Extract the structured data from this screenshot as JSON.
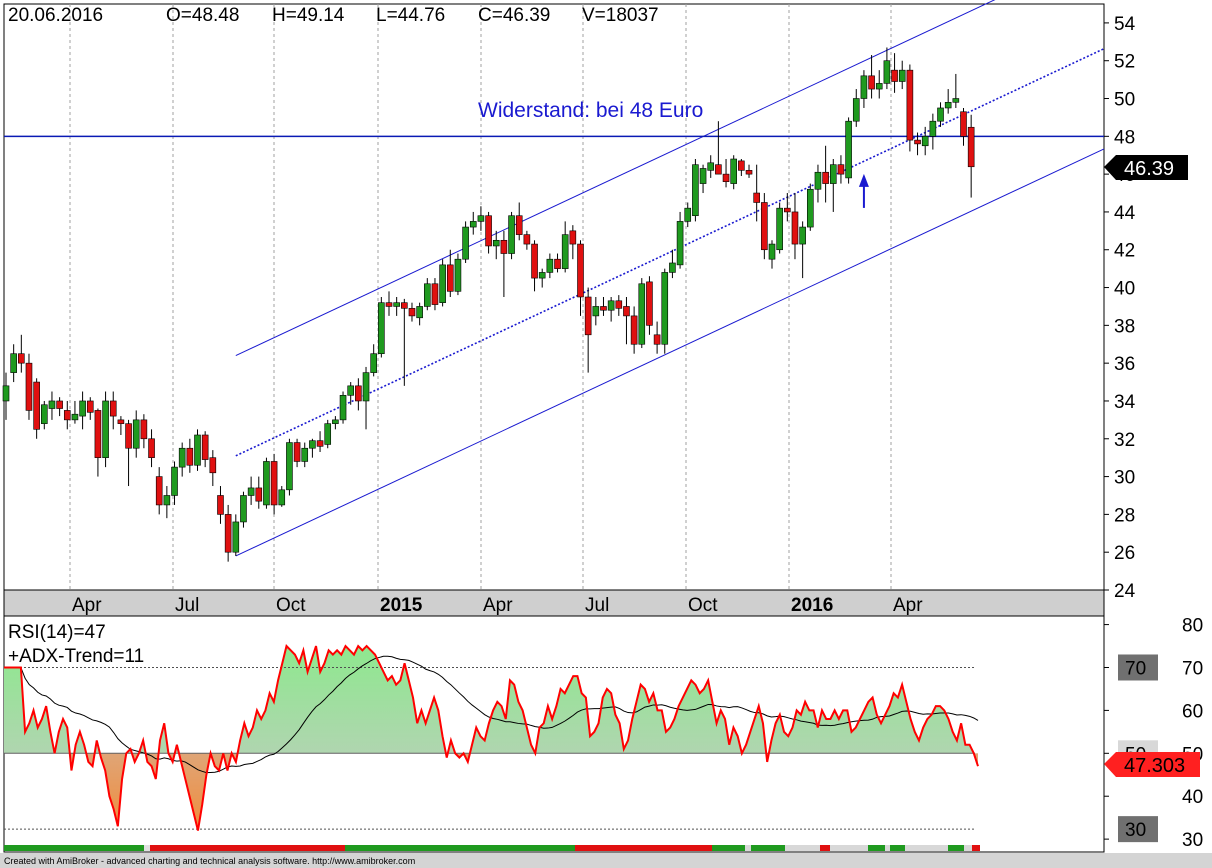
{
  "header": {
    "date": "20.06.2016",
    "open": "O=48.48",
    "high": "H=49.14",
    "low": "L=44.76",
    "close": "C=46.39",
    "volume": "V=18037"
  },
  "footer": {
    "credit": "Created with AmiBroker - advanced charting and technical analysis software. http://www.amibroker.com"
  },
  "colors": {
    "up": "#1f9a1f",
    "down": "#e01010",
    "channel": "#1a1ad0",
    "resistance": "#0a1ab4",
    "rsi_line": "#ff0000",
    "rsi_avg": "#000000",
    "rsi_fill_up": "#9fe09f",
    "rsi_fill_down": "#f0a060",
    "price_tag": "#000000",
    "rsi_tag": "#ff2020",
    "level_tag": "#606060"
  },
  "chart_data": [
    {
      "type": "candlestick",
      "panel": "price",
      "ylim": [
        24,
        55
      ],
      "y_ticks": [
        24,
        26,
        28,
        30,
        32,
        34,
        36,
        38,
        40,
        42,
        44,
        46,
        48,
        50,
        52,
        54
      ],
      "x_ticks": [
        {
          "label": "Apr",
          "date": "2014-04",
          "bold": false
        },
        {
          "label": "Jul",
          "date": "2014-07",
          "bold": false
        },
        {
          "label": "Oct",
          "date": "2014-10",
          "bold": false
        },
        {
          "label": "2015",
          "date": "2015-01",
          "bold": true
        },
        {
          "label": "Apr",
          "date": "2015-04",
          "bold": false
        },
        {
          "label": "Jul",
          "date": "2015-07",
          "bold": false
        },
        {
          "label": "Oct",
          "date": "2015-10",
          "bold": false
        },
        {
          "label": "2016",
          "date": "2016-01",
          "bold": true
        },
        {
          "label": "Apr",
          "date": "2016-04",
          "bold": false
        }
      ],
      "candles": [
        {
          "o": 34.0,
          "h": 35.5,
          "l": 33.0,
          "c": 34.8
        },
        {
          "o": 35.5,
          "h": 37.0,
          "l": 35.0,
          "c": 36.5
        },
        {
          "o": 36.5,
          "h": 37.5,
          "l": 35.5,
          "c": 36.0
        },
        {
          "o": 36.0,
          "h": 36.5,
          "l": 33.0,
          "c": 33.5
        },
        {
          "o": 35.0,
          "h": 35.2,
          "l": 32.0,
          "c": 32.5
        },
        {
          "o": 32.8,
          "h": 34.0,
          "l": 32.5,
          "c": 33.8
        },
        {
          "o": 33.6,
          "h": 34.5,
          "l": 33.0,
          "c": 34.0
        },
        {
          "o": 34.0,
          "h": 34.2,
          "l": 33.2,
          "c": 33.6
        },
        {
          "o": 33.5,
          "h": 34.0,
          "l": 32.5,
          "c": 33.0
        },
        {
          "o": 33.0,
          "h": 34.0,
          "l": 32.8,
          "c": 33.3
        },
        {
          "o": 33.2,
          "h": 34.5,
          "l": 32.5,
          "c": 34.0
        },
        {
          "o": 34.0,
          "h": 34.2,
          "l": 33.0,
          "c": 33.4
        },
        {
          "o": 33.5,
          "h": 33.6,
          "l": 30.0,
          "c": 31.0
        },
        {
          "o": 31.0,
          "h": 34.5,
          "l": 30.5,
          "c": 34.0
        },
        {
          "o": 34.0,
          "h": 34.5,
          "l": 32.5,
          "c": 33.2
        },
        {
          "o": 33.0,
          "h": 33.2,
          "l": 32.2,
          "c": 32.8
        },
        {
          "o": 32.8,
          "h": 33.0,
          "l": 29.5,
          "c": 31.5
        },
        {
          "o": 31.5,
          "h": 33.5,
          "l": 31.0,
          "c": 33.0
        },
        {
          "o": 33.0,
          "h": 33.3,
          "l": 31.5,
          "c": 32.0
        },
        {
          "o": 32.0,
          "h": 32.5,
          "l": 30.5,
          "c": 31.0
        },
        {
          "o": 30.0,
          "h": 30.5,
          "l": 28.0,
          "c": 28.5
        },
        {
          "o": 28.5,
          "h": 29.5,
          "l": 27.8,
          "c": 29.0
        },
        {
          "o": 29.0,
          "h": 30.8,
          "l": 28.5,
          "c": 30.5
        },
        {
          "o": 30.5,
          "h": 31.8,
          "l": 30.0,
          "c": 31.5
        },
        {
          "o": 31.5,
          "h": 32.0,
          "l": 30.2,
          "c": 30.6
        },
        {
          "o": 30.6,
          "h": 32.5,
          "l": 30.3,
          "c": 32.2
        },
        {
          "o": 32.2,
          "h": 32.4,
          "l": 30.5,
          "c": 30.9
        },
        {
          "o": 31.0,
          "h": 31.4,
          "l": 29.5,
          "c": 30.2
        },
        {
          "o": 29.0,
          "h": 29.5,
          "l": 27.5,
          "c": 28.0
        },
        {
          "o": 28.0,
          "h": 28.5,
          "l": 25.5,
          "c": 26.0
        },
        {
          "o": 26.0,
          "h": 28.0,
          "l": 25.8,
          "c": 27.6
        },
        {
          "o": 27.6,
          "h": 29.2,
          "l": 27.3,
          "c": 29.0
        },
        {
          "o": 29.0,
          "h": 30.0,
          "l": 28.5,
          "c": 29.4
        },
        {
          "o": 29.4,
          "h": 30.0,
          "l": 28.3,
          "c": 28.7
        },
        {
          "o": 28.5,
          "h": 31.0,
          "l": 28.3,
          "c": 30.8
        },
        {
          "o": 30.8,
          "h": 31.2,
          "l": 28.0,
          "c": 28.5
        },
        {
          "o": 28.5,
          "h": 29.5,
          "l": 28.4,
          "c": 29.3
        },
        {
          "o": 29.3,
          "h": 32.0,
          "l": 29.0,
          "c": 31.8
        },
        {
          "o": 31.8,
          "h": 32.0,
          "l": 30.5,
          "c": 30.8
        },
        {
          "o": 30.8,
          "h": 31.8,
          "l": 30.5,
          "c": 31.5
        },
        {
          "o": 31.5,
          "h": 32.0,
          "l": 31.0,
          "c": 31.9
        },
        {
          "o": 31.9,
          "h": 32.4,
          "l": 31.3,
          "c": 31.6
        },
        {
          "o": 31.7,
          "h": 33.0,
          "l": 31.5,
          "c": 32.8
        },
        {
          "o": 32.8,
          "h": 33.2,
          "l": 32.5,
          "c": 33.0
        },
        {
          "o": 33.0,
          "h": 34.5,
          "l": 32.8,
          "c": 34.3
        },
        {
          "o": 34.3,
          "h": 35.0,
          "l": 33.8,
          "c": 34.8
        },
        {
          "o": 34.8,
          "h": 35.2,
          "l": 33.5,
          "c": 34.0
        },
        {
          "o": 34.0,
          "h": 35.8,
          "l": 32.5,
          "c": 35.5
        },
        {
          "o": 35.5,
          "h": 37.0,
          "l": 35.3,
          "c": 36.5
        },
        {
          "o": 36.5,
          "h": 39.5,
          "l": 36.3,
          "c": 39.2
        },
        {
          "o": 39.2,
          "h": 39.8,
          "l": 38.5,
          "c": 39.0
        },
        {
          "o": 39.0,
          "h": 39.5,
          "l": 38.5,
          "c": 39.2
        },
        {
          "o": 39.2,
          "h": 39.4,
          "l": 34.8,
          "c": 38.9
        },
        {
          "o": 38.9,
          "h": 39.2,
          "l": 38.2,
          "c": 38.5
        },
        {
          "o": 38.4,
          "h": 39.2,
          "l": 38.0,
          "c": 39.0
        },
        {
          "o": 39.0,
          "h": 40.5,
          "l": 38.8,
          "c": 40.2
        },
        {
          "o": 40.2,
          "h": 40.5,
          "l": 38.8,
          "c": 39.1
        },
        {
          "o": 39.2,
          "h": 41.5,
          "l": 39.0,
          "c": 41.2
        },
        {
          "o": 41.2,
          "h": 42.0,
          "l": 39.5,
          "c": 39.8
        },
        {
          "o": 39.8,
          "h": 41.8,
          "l": 39.6,
          "c": 41.5
        },
        {
          "o": 41.5,
          "h": 43.5,
          "l": 41.3,
          "c": 43.2
        },
        {
          "o": 43.2,
          "h": 44.0,
          "l": 42.8,
          "c": 43.5
        },
        {
          "o": 43.5,
          "h": 44.3,
          "l": 43.0,
          "c": 43.8
        },
        {
          "o": 43.8,
          "h": 44.0,
          "l": 41.8,
          "c": 42.2
        },
        {
          "o": 42.2,
          "h": 43.0,
          "l": 41.5,
          "c": 42.5
        },
        {
          "o": 42.5,
          "h": 43.0,
          "l": 39.5,
          "c": 41.8
        },
        {
          "o": 41.8,
          "h": 44.0,
          "l": 41.5,
          "c": 43.8
        },
        {
          "o": 43.8,
          "h": 44.5,
          "l": 42.5,
          "c": 42.8
        },
        {
          "o": 42.8,
          "h": 43.0,
          "l": 42.0,
          "c": 42.3
        },
        {
          "o": 42.3,
          "h": 42.5,
          "l": 39.8,
          "c": 40.5
        },
        {
          "o": 40.5,
          "h": 41.0,
          "l": 40.0,
          "c": 40.8
        },
        {
          "o": 40.8,
          "h": 41.8,
          "l": 40.5,
          "c": 41.5
        },
        {
          "o": 41.5,
          "h": 41.8,
          "l": 40.8,
          "c": 41.0
        },
        {
          "o": 41.0,
          "h": 43.5,
          "l": 40.8,
          "c": 42.8
        },
        {
          "o": 43.0,
          "h": 43.3,
          "l": 41.5,
          "c": 42.3
        },
        {
          "o": 42.3,
          "h": 42.5,
          "l": 38.5,
          "c": 39.5
        },
        {
          "o": 39.5,
          "h": 40.0,
          "l": 35.5,
          "c": 37.5
        },
        {
          "o": 38.5,
          "h": 39.5,
          "l": 38.0,
          "c": 39.0
        },
        {
          "o": 39.0,
          "h": 39.5,
          "l": 38.5,
          "c": 38.8
        },
        {
          "o": 38.8,
          "h": 39.5,
          "l": 38.2,
          "c": 39.3
        },
        {
          "o": 39.3,
          "h": 39.6,
          "l": 38.5,
          "c": 38.9
        },
        {
          "o": 39.0,
          "h": 39.5,
          "l": 37.0,
          "c": 38.5
        },
        {
          "o": 38.5,
          "h": 39.0,
          "l": 36.5,
          "c": 37.0
        },
        {
          "o": 37.0,
          "h": 40.5,
          "l": 36.8,
          "c": 40.2
        },
        {
          "o": 40.3,
          "h": 40.6,
          "l": 37.5,
          "c": 38.0
        },
        {
          "o": 37.5,
          "h": 38.2,
          "l": 36.5,
          "c": 37.0
        },
        {
          "o": 37.0,
          "h": 41.0,
          "l": 36.5,
          "c": 40.8
        },
        {
          "o": 40.8,
          "h": 42.0,
          "l": 40.5,
          "c": 41.3
        },
        {
          "o": 41.2,
          "h": 44.0,
          "l": 41.0,
          "c": 43.5
        },
        {
          "o": 43.5,
          "h": 44.5,
          "l": 43.2,
          "c": 44.2
        },
        {
          "o": 43.8,
          "h": 46.8,
          "l": 43.5,
          "c": 46.5
        },
        {
          "o": 45.5,
          "h": 46.5,
          "l": 45.0,
          "c": 46.3
        },
        {
          "o": 46.2,
          "h": 47.0,
          "l": 45.8,
          "c": 46.6
        },
        {
          "o": 46.5,
          "h": 48.8,
          "l": 46.0,
          "c": 46.0
        },
        {
          "o": 46.0,
          "h": 46.8,
          "l": 45.3,
          "c": 45.6
        },
        {
          "o": 45.5,
          "h": 47.0,
          "l": 45.2,
          "c": 46.8
        },
        {
          "o": 46.7,
          "h": 46.8,
          "l": 45.9,
          "c": 46.2
        },
        {
          "o": 46.2,
          "h": 46.5,
          "l": 45.8,
          "c": 46.0
        },
        {
          "o": 45.0,
          "h": 46.5,
          "l": 43.5,
          "c": 44.5
        },
        {
          "o": 44.5,
          "h": 45.0,
          "l": 41.5,
          "c": 42.0
        },
        {
          "o": 41.5,
          "h": 42.5,
          "l": 41.0,
          "c": 42.3
        },
        {
          "o": 42.0,
          "h": 44.5,
          "l": 41.8,
          "c": 44.2
        },
        {
          "o": 44.2,
          "h": 45.0,
          "l": 43.5,
          "c": 44.0
        },
        {
          "o": 44.0,
          "h": 45.0,
          "l": 41.5,
          "c": 42.3
        },
        {
          "o": 42.3,
          "h": 43.5,
          "l": 40.5,
          "c": 43.2
        },
        {
          "o": 43.2,
          "h": 45.5,
          "l": 43.0,
          "c": 45.2
        },
        {
          "o": 45.2,
          "h": 46.5,
          "l": 44.5,
          "c": 46.1
        },
        {
          "o": 46.1,
          "h": 47.5,
          "l": 44.5,
          "c": 45.5
        },
        {
          "o": 45.5,
          "h": 46.8,
          "l": 44.0,
          "c": 46.5
        },
        {
          "o": 46.5,
          "h": 47.0,
          "l": 45.5,
          "c": 46.0
        },
        {
          "o": 45.8,
          "h": 49.0,
          "l": 45.5,
          "c": 48.8
        },
        {
          "o": 48.8,
          "h": 50.5,
          "l": 48.5,
          "c": 50.0
        },
        {
          "o": 50.0,
          "h": 51.5,
          "l": 49.5,
          "c": 51.2
        },
        {
          "o": 51.2,
          "h": 52.3,
          "l": 50.0,
          "c": 50.5
        },
        {
          "o": 50.5,
          "h": 51.5,
          "l": 50.0,
          "c": 50.8
        },
        {
          "o": 50.8,
          "h": 52.7,
          "l": 50.5,
          "c": 52.0
        },
        {
          "o": 51.5,
          "h": 52.4,
          "l": 50.3,
          "c": 50.9
        },
        {
          "o": 50.9,
          "h": 52.0,
          "l": 50.5,
          "c": 51.5
        },
        {
          "o": 51.5,
          "h": 51.8,
          "l": 47.2,
          "c": 47.8
        },
        {
          "o": 47.8,
          "h": 48.2,
          "l": 47.0,
          "c": 47.6
        },
        {
          "o": 47.5,
          "h": 48.5,
          "l": 47.0,
          "c": 48.0
        },
        {
          "o": 48.0,
          "h": 49.2,
          "l": 47.3,
          "c": 48.8
        },
        {
          "o": 48.8,
          "h": 49.8,
          "l": 48.5,
          "c": 49.5
        },
        {
          "o": 49.5,
          "h": 50.5,
          "l": 49.2,
          "c": 49.8
        },
        {
          "o": 49.8,
          "h": 51.3,
          "l": 49.5,
          "c": 50.0
        },
        {
          "o": 49.3,
          "h": 49.5,
          "l": 47.5,
          "c": 48.0
        },
        {
          "o": 48.48,
          "h": 49.14,
          "l": 44.76,
          "c": 46.39
        }
      ],
      "resistance": {
        "value": 48,
        "label": "Widerstand: bei 48 Euro"
      },
      "channel": {
        "start_index": 30,
        "lower_start": 25.8,
        "slope_per_bar": 0.19,
        "middle_offset": 5.3,
        "upper_offset": 10.6
      },
      "arrow_index": 112,
      "arrow_value": 45.8,
      "last_close_label": "46.39"
    },
    {
      "type": "line",
      "panel": "indicator",
      "title_line1": "RSI(14)=47",
      "title_line2": "+ADX-Trend=11",
      "ylim": [
        27,
        82
      ],
      "y_ticks": [
        30,
        40,
        50,
        60,
        70,
        80
      ],
      "levels": [
        {
          "value": 70,
          "label": "70"
        },
        {
          "value": 50,
          "label": "50"
        },
        {
          "value": 30,
          "label": "30"
        }
      ],
      "baseline": 50,
      "last_value_label": "47.303",
      "rsi": [
        70,
        70,
        70,
        70,
        70,
        55,
        57,
        60,
        56,
        58,
        61,
        55,
        50,
        55,
        58,
        56,
        46,
        52,
        55,
        52,
        48,
        47,
        53,
        49,
        46,
        40,
        37,
        33,
        44,
        50,
        51,
        48,
        50,
        53,
        48,
        47,
        44,
        53,
        57,
        50,
        48,
        52,
        48,
        44,
        40,
        36,
        32,
        38,
        45,
        50,
        47,
        46,
        50,
        46,
        50,
        48,
        53,
        57,
        54,
        56,
        60,
        58,
        60,
        64,
        62,
        67,
        71,
        75,
        74,
        73,
        71,
        74,
        69,
        72,
        75,
        69,
        71,
        74,
        73,
        74,
        73,
        75,
        74,
        73,
        75,
        74,
        75,
        74,
        73,
        71,
        69,
        67,
        68,
        66,
        67,
        71,
        67,
        63,
        57,
        60,
        57,
        60,
        63,
        60,
        54,
        49,
        53,
        50,
        49,
        50,
        48,
        52,
        56,
        54,
        53,
        57,
        60,
        62,
        61,
        58,
        67,
        66,
        62,
        60,
        56,
        52,
        50,
        56,
        57,
        61,
        58,
        61,
        65,
        64,
        66,
        68,
        68,
        64,
        63,
        54,
        55,
        57,
        63,
        65,
        64,
        59,
        57,
        51,
        53,
        58,
        62,
        66,
        65,
        62,
        64,
        60,
        60,
        55,
        56,
        58,
        61,
        63,
        65,
        67,
        66,
        64,
        65,
        67,
        62,
        57,
        60,
        58,
        52,
        56,
        54,
        50,
        52,
        55,
        58,
        61,
        57,
        48,
        53,
        57,
        59,
        55,
        54,
        56,
        60,
        59,
        62,
        60,
        60,
        56,
        60,
        58,
        58,
        60,
        58,
        60,
        60,
        55,
        56,
        58,
        60,
        62,
        63,
        59,
        57,
        59,
        61,
        64,
        63,
        66,
        62,
        58,
        55,
        53,
        56,
        58,
        59,
        61,
        61,
        60,
        58,
        55,
        53,
        57,
        52,
        52,
        50,
        47
      ],
      "rsi_average": []
    }
  ]
}
